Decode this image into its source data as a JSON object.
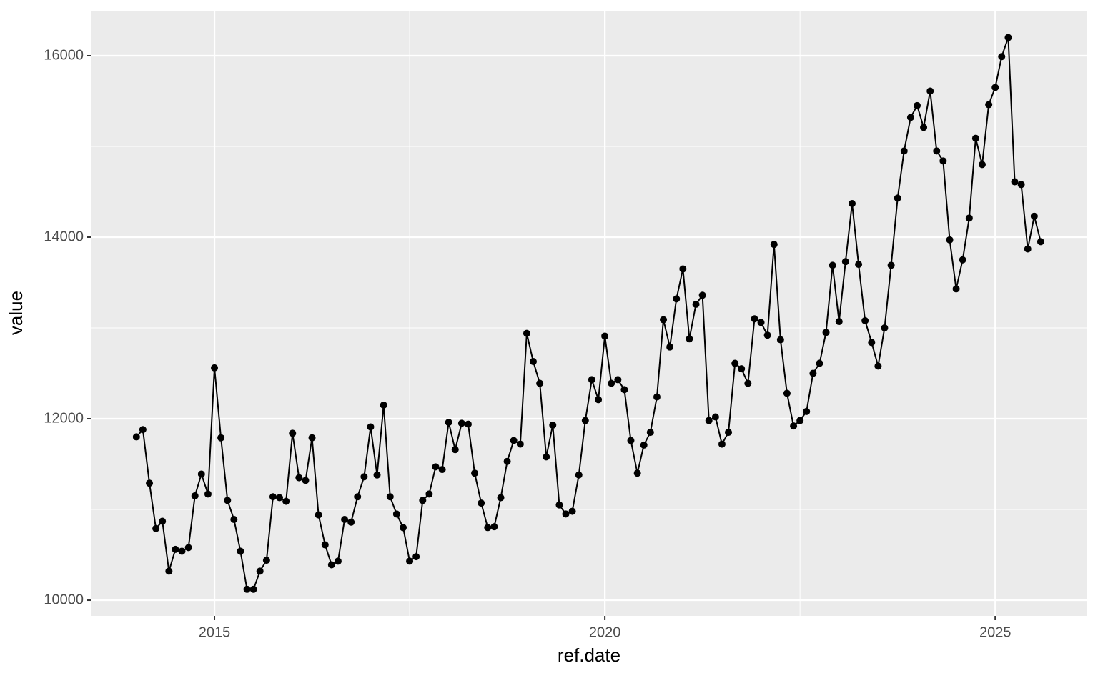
{
  "chart_data": {
    "type": "line",
    "x_label": "ref.date",
    "y_label": "value",
    "x": [
      2014.0,
      2014.083,
      2014.167,
      2014.25,
      2014.333,
      2014.417,
      2014.5,
      2014.583,
      2014.667,
      2014.75,
      2014.833,
      2014.917,
      2015.0,
      2015.083,
      2015.167,
      2015.25,
      2015.333,
      2015.417,
      2015.5,
      2015.583,
      2015.667,
      2015.75,
      2015.833,
      2015.917,
      2016.0,
      2016.083,
      2016.167,
      2016.25,
      2016.333,
      2016.417,
      2016.5,
      2016.583,
      2016.667,
      2016.75,
      2016.833,
      2016.917,
      2017.0,
      2017.083,
      2017.167,
      2017.25,
      2017.333,
      2017.417,
      2017.5,
      2017.583,
      2017.667,
      2017.75,
      2017.833,
      2017.917,
      2018.0,
      2018.083,
      2018.167,
      2018.25,
      2018.333,
      2018.417,
      2018.5,
      2018.583,
      2018.667,
      2018.75,
      2018.833,
      2018.917,
      2019.0,
      2019.083,
      2019.167,
      2019.25,
      2019.333,
      2019.417,
      2019.5,
      2019.583,
      2019.667,
      2019.75,
      2019.833,
      2019.917,
      2020.0,
      2020.083,
      2020.167,
      2020.25,
      2020.333,
      2020.417,
      2020.5,
      2020.583,
      2020.667,
      2020.75,
      2020.833,
      2020.917,
      2021.0,
      2021.083,
      2021.167,
      2021.25,
      2021.333,
      2021.417,
      2021.5,
      2021.583,
      2021.667,
      2021.75,
      2021.833,
      2021.917,
      2022.0,
      2022.083,
      2022.167,
      2022.25,
      2022.333,
      2022.417,
      2022.5,
      2022.583,
      2022.667,
      2022.75,
      2022.833,
      2022.917,
      2023.0,
      2023.083,
      2023.167,
      2023.25,
      2023.333,
      2023.417,
      2023.5,
      2023.583,
      2023.667,
      2023.75,
      2023.833,
      2023.917,
      2024.0,
      2024.083,
      2024.167,
      2024.25,
      2024.333,
      2024.417,
      2024.5,
      2024.583,
      2024.667,
      2024.75,
      2024.833,
      2024.917,
      2025.0,
      2025.083,
      2025.167,
      2025.25,
      2025.333,
      2025.417,
      2025.5,
      2025.583
    ],
    "series": [
      {
        "color": "#000000",
        "values": [
          11800,
          11880,
          11290,
          10790,
          10870,
          10320,
          10560,
          10540,
          10580,
          11150,
          11390,
          11170,
          12560,
          11790,
          11100,
          10890,
          10540,
          10120,
          10120,
          10320,
          10440,
          11140,
          11130,
          11090,
          11840,
          11350,
          11320,
          11790,
          10940,
          10610,
          10390,
          10430,
          10890,
          10860,
          11140,
          11360,
          11910,
          11380,
          12150,
          11140,
          10950,
          10800,
          10430,
          10480,
          11100,
          11170,
          11470,
          11440,
          11960,
          11660,
          11950,
          11940,
          11400,
          11070,
          10800,
          10810,
          11130,
          11530,
          11760,
          11720,
          12940,
          12630,
          12390,
          11580,
          11930,
          11050,
          10950,
          10980,
          11380,
          11980,
          12430,
          12210,
          12910,
          12390,
          12430,
          12320,
          11760,
          11400,
          11710,
          11850,
          12240,
          13090,
          12790,
          13320,
          13650,
          12880,
          13260,
          13360,
          11980,
          12020,
          11720,
          11850,
          12610,
          12550,
          12390,
          13100,
          13060,
          12920,
          13920,
          12870,
          12280,
          11920,
          11980,
          12080,
          12500,
          12610,
          12950,
          13690,
          13070,
          13730,
          14370,
          13700,
          13080,
          12840,
          12580,
          13000,
          13690,
          14430,
          14950,
          15320,
          15450,
          15210,
          15610,
          14950,
          14840,
          13970,
          13430,
          13750,
          14210,
          15090,
          14800,
          15460,
          15650,
          15990,
          16200,
          14610,
          14580,
          13870,
          14230,
          13950
        ]
      }
    ],
    "xlim": [
      2013.425,
      2026.17
    ],
    "ylim": [
      9827,
      16496
    ],
    "xticks": [
      2015,
      2020,
      2025
    ],
    "yticks": [
      10000,
      12000,
      14000,
      16000
    ],
    "minor_xticks": [
      2017.5,
      2022.5
    ],
    "minor_yticks": [
      11000,
      13000,
      15000
    ],
    "grid": true,
    "panel_color": "#ebebeb"
  }
}
